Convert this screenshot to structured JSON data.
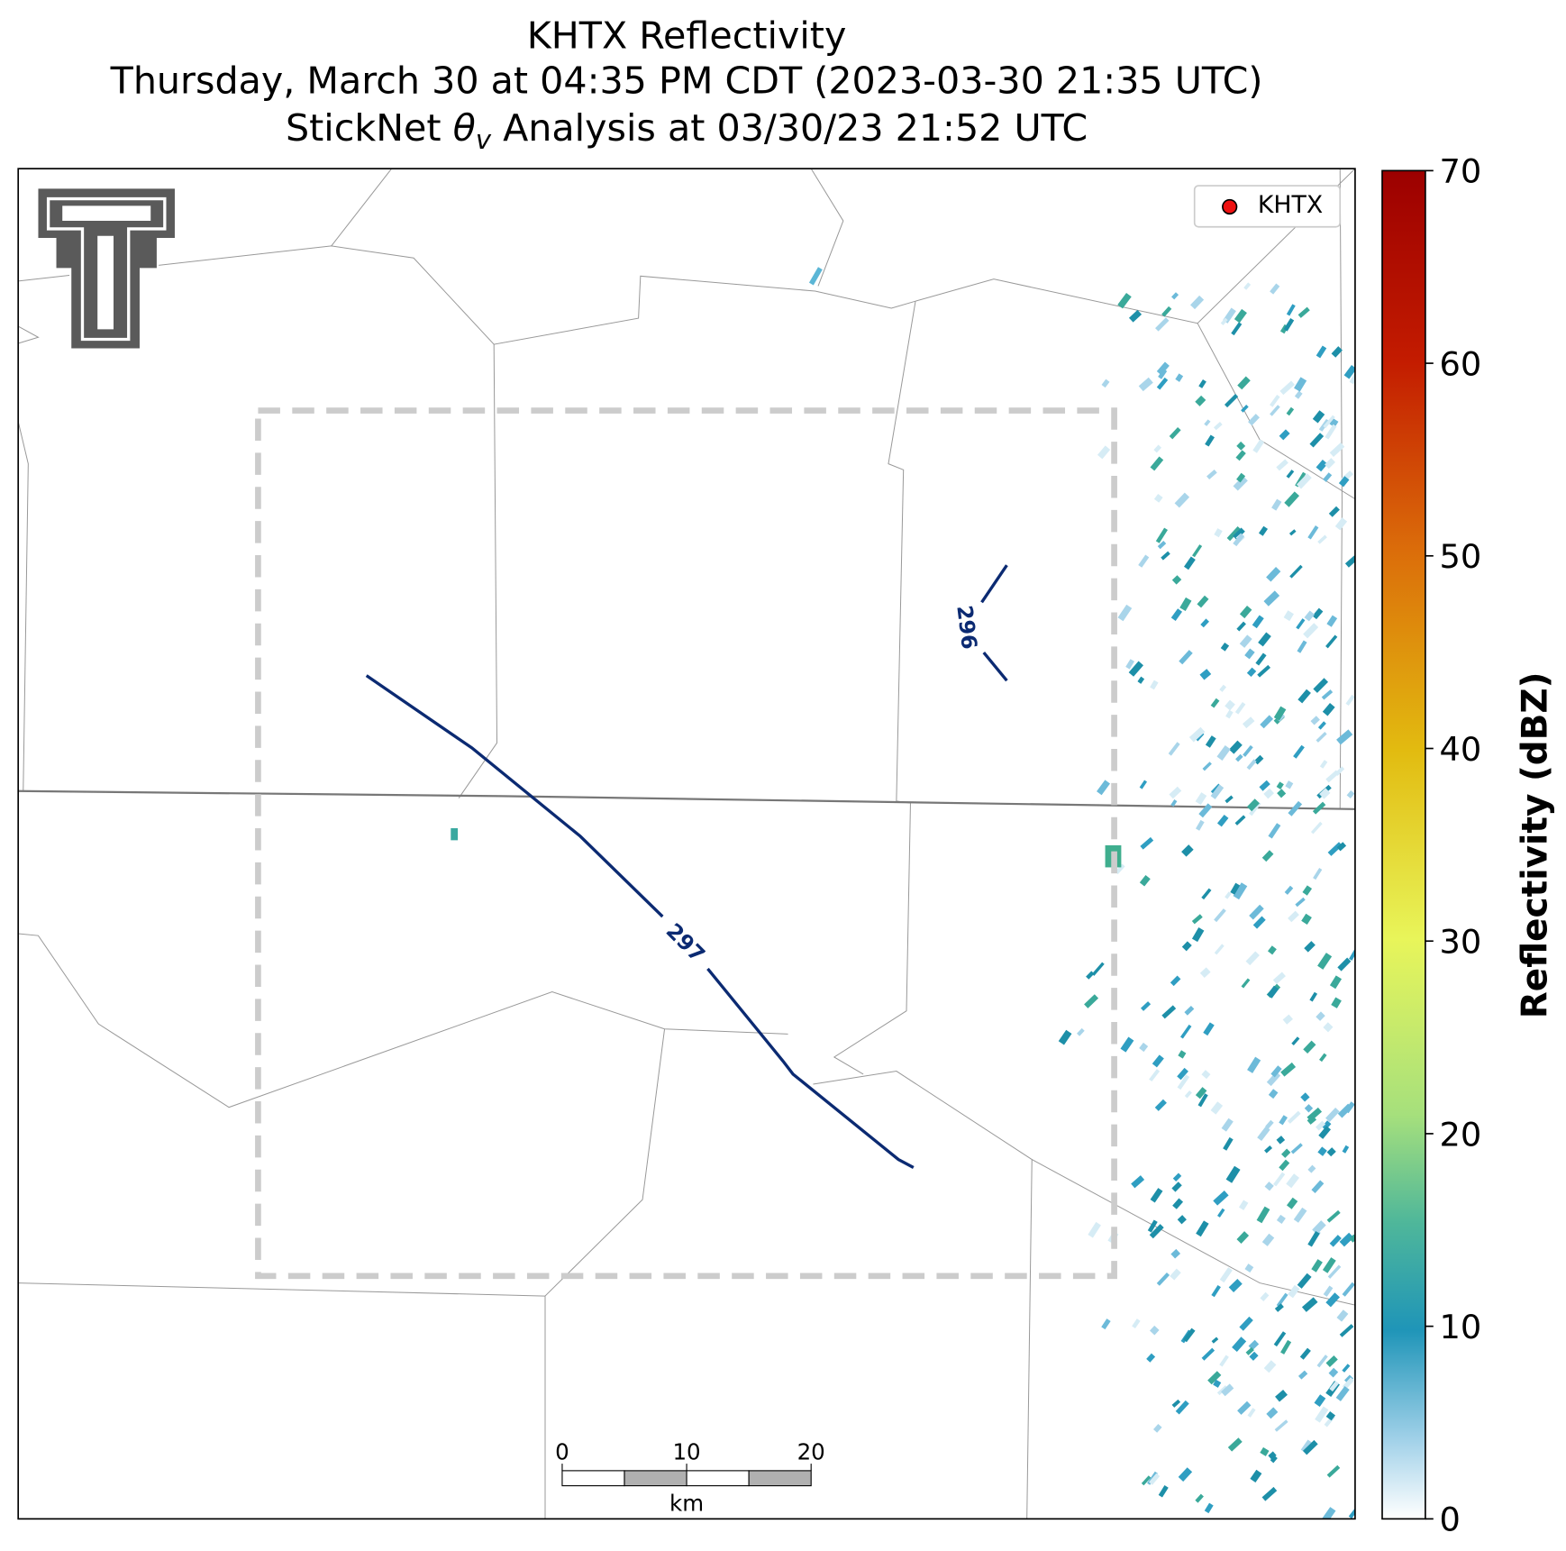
{
  "title": {
    "line1": "KHTX Reflectivity",
    "line2": "Thursday, March 30 at 04:35 PM CDT (2023-03-30 21:35 UTC)",
    "line3": {
      "before": "StickNet ",
      "symbol": "θ",
      "subscript": "v",
      "after": " Analysis at 03/30/23 21:52 UTC"
    }
  },
  "legend": {
    "label": "KHTX",
    "color": "#ee1111"
  },
  "contours": [
    {
      "label": "296"
    },
    {
      "label": "297"
    }
  ],
  "colorbar": {
    "label": "Reflectivity (dBZ)",
    "lim": [
      0,
      70
    ],
    "ticks": [
      0,
      10,
      20,
      30,
      40,
      50,
      60,
      70
    ]
  },
  "scalebar": {
    "ticks": [
      0,
      10,
      20
    ],
    "unit": "km"
  }
}
